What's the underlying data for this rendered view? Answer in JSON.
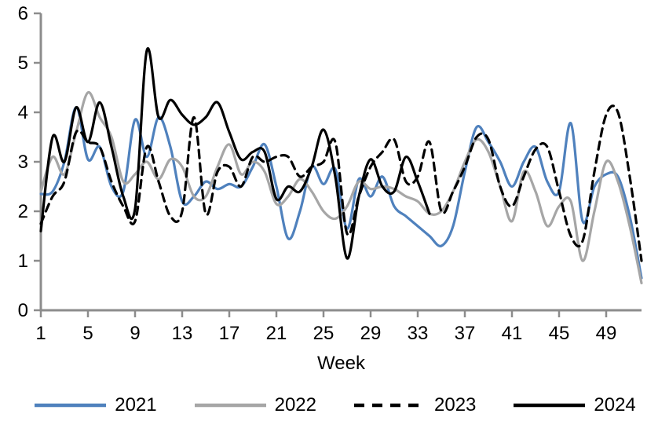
{
  "chart_data": {
    "type": "line",
    "title": "",
    "xlabel": "Week",
    "ylabel": "",
    "x_ticks": [
      1,
      5,
      9,
      13,
      17,
      21,
      25,
      29,
      33,
      37,
      41,
      45,
      49
    ],
    "xlim": [
      1,
      52.3
    ],
    "ylim": [
      0,
      6
    ],
    "y_ticks": [
      0,
      1,
      2,
      3,
      4,
      5,
      6
    ],
    "grid": false,
    "smoothed": true,
    "legend_position": "bottom",
    "axis_color": "#8C8C8C",
    "text_color": "#000000",
    "x_unit": "week",
    "series": [
      {
        "name": "2021",
        "color": "#4F81BD",
        "style": "solid",
        "start_week": 1,
        "values": [
          2.35,
          2.4,
          3.0,
          4.1,
          3.05,
          3.3,
          2.5,
          2.4,
          3.85,
          3.1,
          3.9,
          3.3,
          2.2,
          2.3,
          2.6,
          2.45,
          2.55,
          2.5,
          2.9,
          3.35,
          2.5,
          1.45,
          2.0,
          2.9,
          2.55,
          2.85,
          1.65,
          2.65,
          2.3,
          2.7,
          2.1,
          1.9,
          1.7,
          1.5,
          1.3,
          1.7,
          2.8,
          3.7,
          3.4,
          3.0,
          2.5,
          3.0,
          3.3,
          2.6,
          2.4,
          3.78,
          1.8,
          2.5,
          2.75,
          2.7,
          1.9,
          0.65
        ]
      },
      {
        "name": "2022",
        "color": "#A6A6A6",
        "style": "solid",
        "start_week": 1,
        "values": [
          2.4,
          3.1,
          2.75,
          3.6,
          4.4,
          3.9,
          3.5,
          2.6,
          2.75,
          3.0,
          2.65,
          3.05,
          2.9,
          2.3,
          2.3,
          2.9,
          3.35,
          2.75,
          3.0,
          2.8,
          2.15,
          2.3,
          2.65,
          2.4,
          2.0,
          1.85,
          2.1,
          2.6,
          2.45,
          2.5,
          2.45,
          2.3,
          2.2,
          1.95,
          2.0,
          2.4,
          3.0,
          3.45,
          3.2,
          2.5,
          1.8,
          2.8,
          2.4,
          1.7,
          2.1,
          2.2,
          1.0,
          2.0,
          3.0,
          2.6,
          1.7,
          0.55
        ]
      },
      {
        "name": "2023",
        "color": "#000000",
        "style": "dashed",
        "start_week": 1,
        "values": [
          1.75,
          2.3,
          2.6,
          3.6,
          3.4,
          3.3,
          2.6,
          2.1,
          1.8,
          3.3,
          2.6,
          1.9,
          2.0,
          3.9,
          1.95,
          2.8,
          2.9,
          2.5,
          3.1,
          3.0,
          3.1,
          3.1,
          2.7,
          2.9,
          3.0,
          3.4,
          1.55,
          2.3,
          2.9,
          3.2,
          3.45,
          2.6,
          2.7,
          3.4,
          2.0,
          2.4,
          2.9,
          3.5,
          3.45,
          2.5,
          2.1,
          2.7,
          3.25,
          3.3,
          2.4,
          1.5,
          1.4,
          2.8,
          3.95,
          4.0,
          2.7,
          1.0
        ]
      },
      {
        "name": "2024",
        "color": "#000000",
        "style": "solid",
        "start_week": 1,
        "values": [
          1.6,
          3.5,
          3.0,
          4.1,
          3.4,
          4.2,
          3.3,
          2.3,
          2.05,
          5.25,
          3.9,
          4.25,
          3.95,
          3.75,
          3.9,
          4.2,
          3.6,
          3.05,
          3.2,
          3.2,
          2.25,
          2.5,
          2.4,
          2.9,
          3.65,
          2.7,
          1.05,
          2.3,
          3.05,
          2.5,
          2.4,
          3.1,
          2.6,
          1.95
        ]
      }
    ]
  }
}
